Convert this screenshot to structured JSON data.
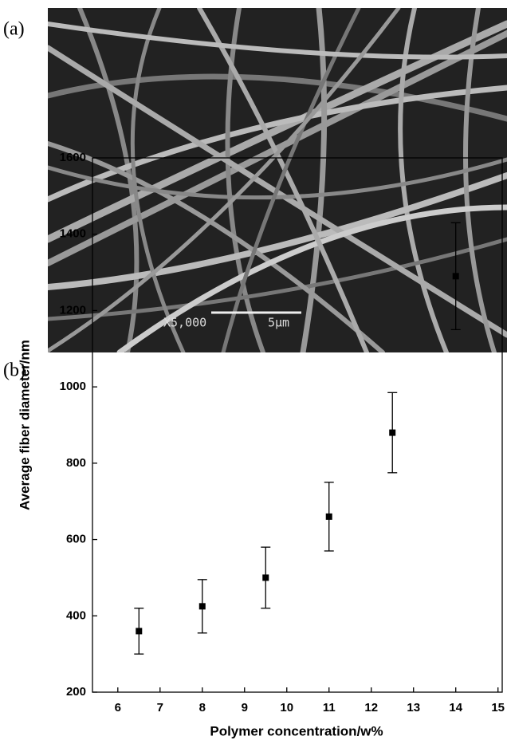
{
  "panel_a": {
    "label": "(a)",
    "magnification": "X5,000",
    "scale_bar": "5μm"
  },
  "chart_data": {
    "type": "scatter",
    "panel_label": "(b)",
    "x_label": "Polymer concentration/w%",
    "y_label": "Average fiber diameter/nm",
    "x": [
      6.5,
      8,
      9.5,
      11,
      12.5,
      14
    ],
    "values": [
      360,
      425,
      500,
      660,
      880,
      1290
    ],
    "errors": [
      60,
      70,
      80,
      90,
      105,
      140
    ],
    "color": "#000000",
    "xlim": [
      5.4,
      15.1
    ],
    "xticks": [
      6,
      7,
      8,
      9,
      10,
      11,
      12,
      13,
      14,
      15
    ],
    "ylim": [
      200,
      1600
    ],
    "yticks": [
      200,
      400,
      600,
      800,
      1000,
      1200,
      1400,
      1600
    ]
  }
}
